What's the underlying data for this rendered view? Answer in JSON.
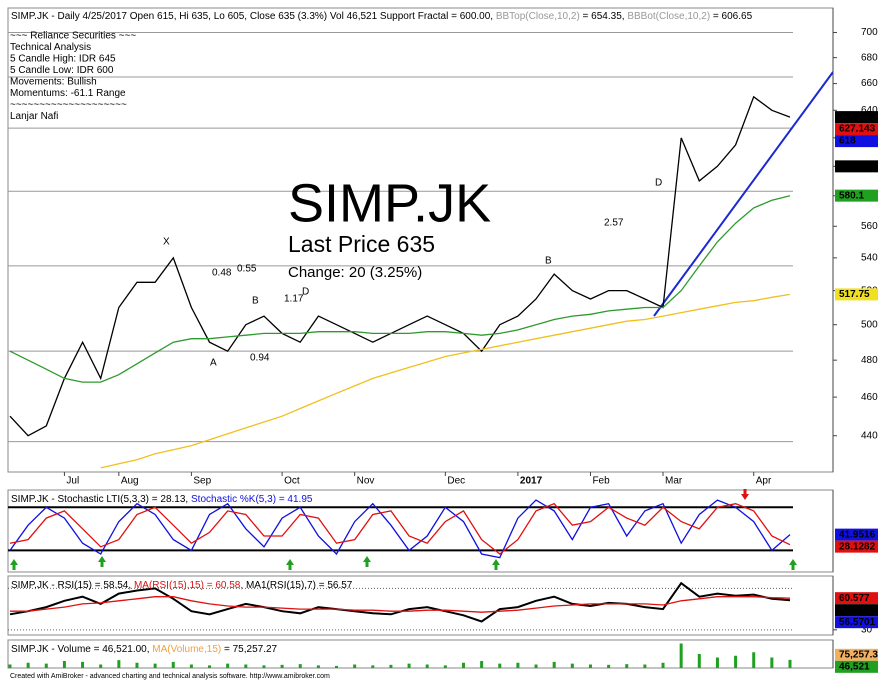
{
  "chart_data": [
    {
      "type": "line",
      "log": true,
      "title_parts": [
        {
          "text": "SIMP.JK - Daily 4/25/2017 Open 615, Hi 635, Lo 605, Close 635 (3.3%) Vol 46,521 Support Fractal = 600.00, ",
          "color": "#000000"
        },
        {
          "text": "BBTop(Close,10,2)",
          "color": "#999999"
        },
        {
          "text": " = 654.35, ",
          "color": "#000000"
        },
        {
          "text": "BBBot(Close,10,2)",
          "color": "#999999"
        },
        {
          "text": " = 606.65",
          "color": "#000000"
        }
      ],
      "notes": [
        "~~~ Reliance Securities ~~~",
        "Technical Analysis",
        "5 Candle High: IDR 645",
        "5 Candle Low: IDR 600",
        "Movements: Bullish",
        "Momentums: -61.1 Range",
        "~~~~~~~~~~~~~~~~~~~~",
        "Lanjar Nafi"
      ],
      "headline": "SIMP.JK",
      "last_price": "Last Price 635",
      "change": "Change: 20 (3.25%)",
      "annotations": [
        {
          "text": "X",
          "color": "#e02020"
        },
        {
          "text": "0.48",
          "color": "#e02020"
        },
        {
          "text": "0.55",
          "color": "#e02020"
        },
        {
          "text": "B",
          "color": "#e02020"
        },
        {
          "text": "1.17",
          "color": "#e02020"
        },
        {
          "text": "D",
          "color": "#e02020"
        },
        {
          "text": "A",
          "color": "#e02020"
        },
        {
          "text": "0.94",
          "color": "#e02020"
        },
        {
          "text": "B",
          "color": "#e0b000"
        },
        {
          "text": "2.57",
          "color": "#e0b000"
        },
        {
          "text": "D",
          "color": "#e0b000"
        }
      ],
      "categories": [
        null,
        null,
        null,
        "Jul",
        null,
        null,
        "Aug",
        null,
        null,
        null,
        "Sep",
        null,
        null,
        null,
        null,
        "Oct",
        null,
        null,
        null,
        "Nov",
        null,
        null,
        null,
        null,
        "Dec",
        null,
        null,
        null,
        "2017",
        null,
        null,
        null,
        "Feb",
        null,
        null,
        null,
        "Mar",
        null,
        null,
        null,
        null,
        "Apr",
        null,
        null
      ],
      "series": [
        {
          "color": "#000000",
          "values": [
            450,
            440,
            445,
            470,
            490,
            470,
            510,
            525,
            525,
            540,
            510,
            490,
            485,
            500,
            505,
            495,
            490,
            505,
            500,
            495,
            490,
            495,
            500,
            505,
            500,
            495,
            485,
            500,
            505,
            515,
            530,
            520,
            515,
            520,
            520,
            515,
            510,
            620,
            590,
            600,
            615,
            650,
            640,
            635
          ]
        },
        {
          "color": "#2e9a2e",
          "values": [
            485,
            480,
            475,
            470,
            468,
            468,
            472,
            478,
            484,
            490,
            492,
            492,
            493,
            494,
            495,
            495,
            495,
            496,
            496,
            496,
            495,
            495,
            495,
            496,
            496,
            495,
            494,
            495,
            497,
            500,
            503,
            505,
            506,
            508,
            509,
            510,
            510,
            520,
            535,
            550,
            562,
            572,
            577,
            580
          ]
        },
        {
          "color": "#f0c020",
          "values": [
            null,
            null,
            null,
            null,
            null,
            424,
            426,
            428,
            431,
            433,
            435,
            438,
            441,
            444,
            447,
            450,
            454,
            458,
            462,
            466,
            470,
            473,
            476,
            479,
            482,
            484,
            486,
            488,
            490,
            492,
            494,
            496,
            498,
            500,
            502,
            503,
            505,
            507,
            509,
            511,
            513,
            514,
            516,
            517.75
          ]
        }
      ],
      "levels": [
        700,
        665,
        627,
        583,
        535,
        485,
        437
      ],
      "tags": [
        {
          "value": 635,
          "color": "#000000",
          "text_color": "#ffffff"
        },
        {
          "value": 627.143,
          "color": "#e01010",
          "text_color": "#600000"
        },
        {
          "value": 618,
          "color": "#1010e0",
          "text_color": "#ffffff"
        },
        {
          "value": 600,
          "color": "#000000",
          "text_color": "#ffffff"
        },
        {
          "value": 580.1,
          "color": "#20a020",
          "text_color": "#ffffff"
        },
        {
          "value": 517.75,
          "color": "#f0e020",
          "text_color": "#000000"
        }
      ],
      "ylim": [
        422,
        720
      ],
      "yticks": [
        440,
        460,
        480,
        500,
        520,
        540,
        560,
        580,
        600,
        620,
        640,
        660,
        680,
        700
      ]
    },
    {
      "type": "line",
      "title_parts": [
        {
          "text": "SIMP.JK - Stochastic LTI(5,3,3) = 28.13, ",
          "color": "#000000"
        },
        {
          "text": "Stochastic %K(5,3) = 41.95",
          "color": "#1010e0"
        }
      ],
      "series": [
        {
          "color": "#1010e0",
          "values": [
            20,
            55,
            80,
            65,
            30,
            15,
            60,
            85,
            70,
            35,
            20,
            70,
            85,
            50,
            25,
            65,
            80,
            40,
            15,
            60,
            85,
            55,
            20,
            40,
            80,
            60,
            15,
            10,
            65,
            90,
            75,
            35,
            80,
            85,
            40,
            75,
            85,
            30,
            70,
            90,
            80,
            60,
            20,
            42
          ]
        },
        {
          "color": "#e01010",
          "values": [
            30,
            35,
            65,
            75,
            50,
            25,
            35,
            70,
            80,
            55,
            30,
            45,
            75,
            70,
            40,
            40,
            70,
            65,
            30,
            35,
            70,
            75,
            40,
            30,
            60,
            75,
            35,
            15,
            35,
            75,
            85,
            55,
            60,
            80,
            65,
            55,
            80,
            60,
            50,
            80,
            85,
            75,
            40,
            28
          ]
        }
      ],
      "levels": [
        80,
        20
      ],
      "tags": [
        {
          "value": 41.9516,
          "color": "#1010e0",
          "text_color": "#ffffff"
        },
        {
          "value": 28.1282,
          "color": "#e01010",
          "text_color": "#600000"
        }
      ],
      "ylim": [
        -10,
        104
      ],
      "yticks": []
    },
    {
      "type": "line",
      "title_parts": [
        {
          "text": "SIMP.JK - RSI(15) = 58.54, ",
          "color": "#000000"
        },
        {
          "text": "MA(RSI(15),15) = 60.58, ",
          "color": "#e01010"
        },
        {
          "text": "MA1(RSI(15),7) = 56.57",
          "color": "#000000"
        }
      ],
      "series": [
        {
          "color": "#000000",
          "values": [
            45,
            48,
            52,
            58,
            62,
            55,
            65,
            68,
            70,
            60,
            48,
            45,
            50,
            55,
            52,
            48,
            46,
            52,
            50,
            48,
            46,
            45,
            50,
            52,
            48,
            44,
            38,
            50,
            52,
            58,
            62,
            55,
            53,
            56,
            55,
            52,
            50,
            75,
            62,
            65,
            63,
            64,
            60,
            58.54
          ]
        },
        {
          "color": "#e01010",
          "values": [
            48,
            48,
            50,
            52,
            55,
            56,
            58,
            60,
            62,
            62,
            58,
            55,
            53,
            52,
            52,
            51,
            50,
            50,
            50,
            49,
            49,
            48,
            48,
            49,
            49,
            48,
            47,
            48,
            49,
            51,
            53,
            54,
            55,
            55,
            55,
            55,
            54,
            58,
            60,
            62,
            62,
            62,
            61,
            60.58
          ]
        }
      ],
      "levels": [
        70,
        30
      ],
      "tags": [
        {
          "value": 60.577,
          "color": "#e01010",
          "text_color": "#600000"
        },
        {
          "value": 58.5376,
          "color": "#000000",
          "text_color": "#ffffff"
        },
        {
          "value": 56.5701,
          "color": "#1010e0",
          "text_color": "#ffffff"
        }
      ],
      "ylim": [
        25,
        82
      ],
      "yticks": [
        30
      ]
    },
    {
      "type": "bar",
      "title_parts": [
        {
          "text": "SIMP.JK - Volume = 46,521.00, ",
          "color": "#000000"
        },
        {
          "text": "MA(Volume,15)",
          "color": "#f0a040"
        },
        {
          "text": " = 75,257.27",
          "color": "#000000"
        }
      ],
      "color": "#20a020",
      "values": [
        20000,
        30000,
        25000,
        40000,
        35000,
        20000,
        45000,
        30000,
        25000,
        35000,
        20000,
        15000,
        25000,
        20000,
        15000,
        18000,
        22000,
        15000,
        12000,
        20000,
        15000,
        18000,
        25000,
        20000,
        15000,
        30000,
        40000,
        25000,
        30000,
        20000,
        35000,
        25000,
        20000,
        18000,
        22000,
        20000,
        30000,
        140000,
        80000,
        60000,
        70000,
        90000,
        60000,
        46521
      ],
      "tags": [
        {
          "value": 75257.3,
          "label": "75,257.3",
          "color": "#f0b060",
          "text_color": "#000000"
        },
        {
          "value": 46521,
          "label": "46,521",
          "color": "#20a020",
          "text_color": "#ffffff"
        }
      ],
      "ylim": [
        0,
        160000
      ],
      "yticks": []
    }
  ],
  "footer": "Created with AmiBroker - advanced charting and technical analysis software. http://www.amibroker.com"
}
